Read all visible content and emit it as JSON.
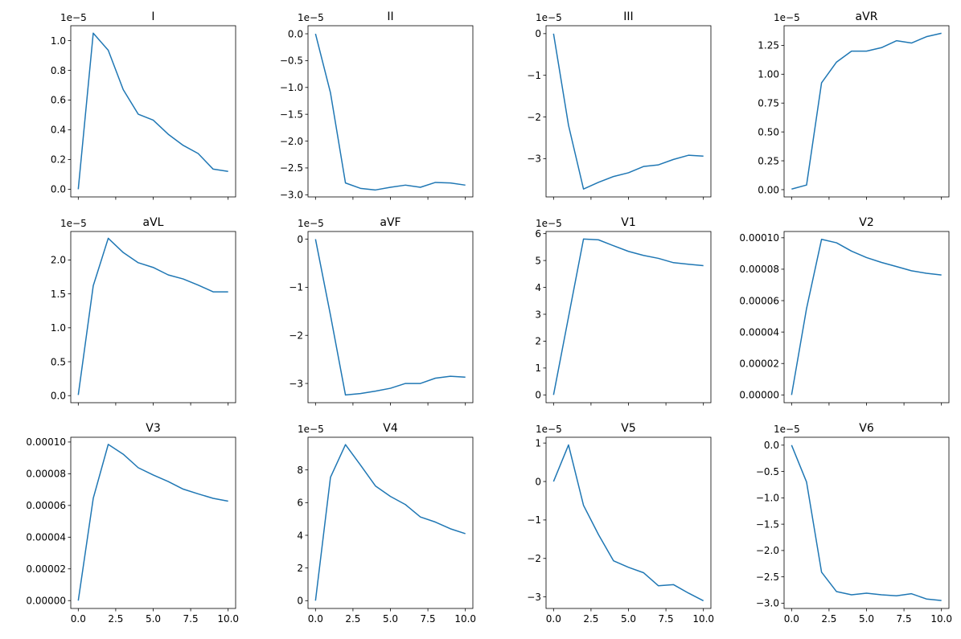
{
  "chart_data": [
    {
      "type": "line",
      "title": "I",
      "offset": "1e−5",
      "x": [
        0,
        1,
        2,
        3,
        4,
        5,
        6,
        7,
        8,
        9,
        10
      ],
      "y": [
        0.0,
        1.05,
        0.935,
        0.67,
        0.505,
        0.465,
        0.37,
        0.295,
        0.24,
        0.135,
        0.12
      ],
      "ylim": [
        -0.052,
        1.1
      ],
      "yticks": [
        0.0,
        0.2,
        0.4,
        0.6,
        0.8,
        1.0
      ],
      "ytick_labels": [
        "0.0",
        "0.2",
        "0.4",
        "0.6",
        "0.8",
        "1.0"
      ],
      "xlim": [
        -0.5,
        10.5
      ],
      "xticks": [
        0,
        2.5,
        5,
        7.5,
        10
      ],
      "xtick_labels": [],
      "color": "#1f77b4"
    },
    {
      "type": "line",
      "title": "II",
      "offset": "1e−5",
      "x": [
        0,
        1,
        2,
        3,
        4,
        5,
        6,
        7,
        8,
        9,
        10
      ],
      "y": [
        0.0,
        -1.1,
        -2.78,
        -2.88,
        -2.91,
        -2.86,
        -2.82,
        -2.86,
        -2.77,
        -2.78,
        -2.82
      ],
      "ylim": [
        -3.04,
        0.15
      ],
      "yticks": [
        0.0,
        -0.5,
        -1.0,
        -1.5,
        -2.0,
        -2.5,
        -3.0
      ],
      "ytick_labels": [
        "0.0",
        "−0.5",
        "−1.0",
        "−1.5",
        "−2.0",
        "−2.5",
        "−3.0"
      ],
      "xlim": [
        -0.5,
        10.5
      ],
      "xticks": [
        0,
        2.5,
        5,
        7.5,
        10
      ],
      "xtick_labels": [],
      "color": "#1f77b4"
    },
    {
      "type": "line",
      "title": "III",
      "offset": "1e−5",
      "x": [
        0,
        1,
        2,
        3,
        4,
        5,
        6,
        7,
        8,
        9,
        10
      ],
      "y": [
        0.0,
        -2.2,
        -3.73,
        -3.57,
        -3.43,
        -3.34,
        -3.19,
        -3.15,
        -3.02,
        -2.92,
        -2.94
      ],
      "ylim": [
        -3.92,
        0.19
      ],
      "yticks": [
        0,
        -1,
        -2,
        -3
      ],
      "ytick_labels": [
        "0",
        "−1",
        "−2",
        "−3"
      ],
      "xlim": [
        -0.5,
        10.5
      ],
      "xticks": [
        0,
        2.5,
        5,
        7.5,
        10
      ],
      "xtick_labels": [],
      "color": "#1f77b4"
    },
    {
      "type": "line",
      "title": "aVR",
      "offset": "1e−5",
      "x": [
        0,
        1,
        2,
        3,
        4,
        5,
        6,
        7,
        8,
        9,
        10
      ],
      "y": [
        0.005,
        0.04,
        0.925,
        1.105,
        1.2,
        1.2,
        1.23,
        1.29,
        1.27,
        1.325,
        1.355
      ],
      "ylim": [
        -0.063,
        1.42
      ],
      "yticks": [
        0.0,
        0.25,
        0.5,
        0.75,
        1.0,
        1.25
      ],
      "ytick_labels": [
        "0.00",
        "0.25",
        "0.50",
        "0.75",
        "1.00",
        "1.25"
      ],
      "xlim": [
        -0.5,
        10.5
      ],
      "xticks": [
        0,
        2.5,
        5,
        7.5,
        10
      ],
      "xtick_labels": [],
      "color": "#1f77b4"
    },
    {
      "type": "line",
      "title": "aVL",
      "offset": "1e−5",
      "x": [
        0,
        1,
        2,
        3,
        4,
        5,
        6,
        7,
        8,
        9,
        10
      ],
      "y": [
        0.01,
        1.62,
        2.32,
        2.11,
        1.96,
        1.89,
        1.78,
        1.72,
        1.63,
        1.53,
        1.53
      ],
      "ylim": [
        -0.104,
        2.42
      ],
      "yticks": [
        0.0,
        0.5,
        1.0,
        1.5,
        2.0
      ],
      "ytick_labels": [
        "0.0",
        "0.5",
        "1.0",
        "1.5",
        "2.0"
      ],
      "xlim": [
        -0.5,
        10.5
      ],
      "xticks": [
        0,
        2.5,
        5,
        7.5,
        10
      ],
      "xtick_labels": [],
      "color": "#1f77b4"
    },
    {
      "type": "line",
      "title": "aVF",
      "offset": "1e−5",
      "x": [
        0,
        1,
        2,
        3,
        4,
        5,
        6,
        7,
        8,
        9,
        10
      ],
      "y": [
        0.0,
        -1.58,
        -3.24,
        -3.21,
        -3.16,
        -3.1,
        -3.0,
        -3.0,
        -2.89,
        -2.85,
        -2.87
      ],
      "ylim": [
        -3.4,
        0.16
      ],
      "yticks": [
        0,
        -1,
        -2,
        -3
      ],
      "ytick_labels": [
        "0",
        "−1",
        "−2",
        "−3"
      ],
      "xlim": [
        -0.5,
        10.5
      ],
      "xticks": [
        0,
        2.5,
        5,
        7.5,
        10
      ],
      "xtick_labels": [],
      "color": "#1f77b4"
    },
    {
      "type": "line",
      "title": "V1",
      "offset": "1e−5",
      "x": [
        0,
        1,
        2,
        3,
        4,
        5,
        6,
        7,
        8,
        9,
        10
      ],
      "y": [
        0.0,
        2.9,
        5.8,
        5.77,
        5.55,
        5.34,
        5.19,
        5.08,
        4.92,
        4.86,
        4.81
      ],
      "ylim": [
        -0.29,
        6.08
      ],
      "yticks": [
        0,
        1,
        2,
        3,
        4,
        5,
        6
      ],
      "ytick_labels": [
        "0",
        "1",
        "2",
        "3",
        "4",
        "5",
        "6"
      ],
      "xlim": [
        -0.5,
        10.5
      ],
      "xticks": [
        0,
        2.5,
        5,
        7.5,
        10
      ],
      "xtick_labels": [],
      "color": "#1f77b4"
    },
    {
      "type": "line",
      "title": "V2",
      "offset": "",
      "x": [
        0,
        1,
        2,
        3,
        4,
        5,
        6,
        7,
        8,
        9,
        10
      ],
      "y": [
        0.0,
        5.5e-05,
        9.9e-05,
        9.68e-05,
        9.15e-05,
        8.74e-05,
        8.43e-05,
        8.17e-05,
        7.9e-05,
        7.74e-05,
        7.63e-05
      ],
      "ylim": [
        -4.95e-06,
        0.000104
      ],
      "yticks": [
        0,
        2e-05,
        4e-05,
        6e-05,
        8e-05,
        0.0001
      ],
      "ytick_labels": [
        "0.00000",
        "0.00002",
        "0.00004",
        "0.00006",
        "0.00008",
        "0.00010"
      ],
      "xlim": [
        -0.5,
        10.5
      ],
      "xticks": [
        0,
        2.5,
        5,
        7.5,
        10
      ],
      "xtick_labels": [],
      "color": "#1f77b4"
    },
    {
      "type": "line",
      "title": "V3",
      "offset": "",
      "x": [
        0,
        1,
        2,
        3,
        4,
        5,
        6,
        7,
        8,
        9,
        10
      ],
      "y": [
        0.0,
        6.45e-05,
        9.85e-05,
        9.23e-05,
        8.38e-05,
        7.92e-05,
        7.51e-05,
        7.03e-05,
        6.73e-05,
        6.45e-05,
        6.27e-05
      ],
      "ylim": [
        -4.95e-06,
        0.000103
      ],
      "yticks": [
        0,
        2e-05,
        4e-05,
        6e-05,
        8e-05,
        0.0001
      ],
      "ytick_labels": [
        "0.00000",
        "0.00002",
        "0.00004",
        "0.00006",
        "0.00008",
        "0.00010"
      ],
      "xlim": [
        -0.5,
        10.5
      ],
      "xticks": [
        0,
        2.5,
        5,
        7.5,
        10
      ],
      "xtick_labels": [
        "0.0",
        "2.5",
        "5.0",
        "7.5",
        "10.0"
      ],
      "color": "#1f77b4"
    },
    {
      "type": "line",
      "title": "V4",
      "offset": "1e−5",
      "x": [
        0,
        1,
        2,
        3,
        4,
        5,
        6,
        7,
        8,
        9,
        10
      ],
      "y": [
        0.0,
        7.55,
        9.55,
        8.3,
        7.02,
        6.38,
        5.88,
        5.12,
        4.81,
        4.4,
        4.1
      ],
      "ylim": [
        -0.477,
        10.0
      ],
      "yticks": [
        0,
        2,
        4,
        6,
        8
      ],
      "ytick_labels": [
        "0",
        "2",
        "4",
        "6",
        "8"
      ],
      "xlim": [
        -0.5,
        10.5
      ],
      "xticks": [
        0,
        2.5,
        5,
        7.5,
        10
      ],
      "xtick_labels": [
        "0.0",
        "2.5",
        "5.0",
        "7.5",
        "10.0"
      ],
      "color": "#1f77b4"
    },
    {
      "type": "line",
      "title": "V5",
      "offset": "1e−5",
      "x": [
        0,
        1,
        2,
        3,
        4,
        5,
        6,
        7,
        8,
        9,
        10
      ],
      "y": [
        0.0,
        0.95,
        -0.62,
        -1.38,
        -2.06,
        -2.23,
        -2.37,
        -2.71,
        -2.68,
        -2.9,
        -3.1
      ],
      "ylim": [
        -3.3,
        1.15
      ],
      "yticks": [
        1,
        0,
        -1,
        -2,
        -3
      ],
      "ytick_labels": [
        "1",
        "0",
        "−1",
        "−2",
        "−3"
      ],
      "xlim": [
        -0.5,
        10.5
      ],
      "xticks": [
        0,
        2.5,
        5,
        7.5,
        10
      ],
      "xtick_labels": [
        "0.0",
        "2.5",
        "5.0",
        "7.5",
        "10.0"
      ],
      "color": "#1f77b4"
    },
    {
      "type": "line",
      "title": "V6",
      "offset": "1e−5",
      "x": [
        0,
        1,
        2,
        3,
        4,
        5,
        6,
        7,
        8,
        9,
        10
      ],
      "y": [
        0.0,
        -0.7,
        -2.41,
        -2.78,
        -2.84,
        -2.81,
        -2.84,
        -2.86,
        -2.82,
        -2.92,
        -2.95
      ],
      "ylim": [
        -3.1,
        0.15
      ],
      "yticks": [
        0.0,
        -0.5,
        -1.0,
        -1.5,
        -2.0,
        -2.5,
        -3.0
      ],
      "ytick_labels": [
        "0.0",
        "−0.5",
        "−1.0",
        "−1.5",
        "−2.0",
        "−2.5",
        "−3.0"
      ],
      "xlim": [
        -0.5,
        10.5
      ],
      "xticks": [
        0,
        2.5,
        5,
        7.5,
        10
      ],
      "xtick_labels": [
        "0.0",
        "2.5",
        "5.0",
        "7.5",
        "10.0"
      ],
      "color": "#1f77b4"
    }
  ]
}
